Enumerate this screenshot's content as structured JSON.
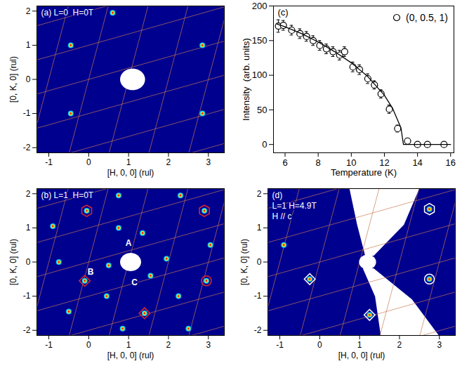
{
  "chart_data": [
    {
      "type": "map",
      "title": "(a) L=0  H=0T",
      "x_label": "[H, 0, 0] (rul)",
      "y_label": "[0, K, 0] (rul)",
      "xlim": [
        -1.3,
        3.4
      ],
      "ylim": [
        -2.15,
        2.15
      ],
      "xticks": [
        -1,
        0,
        1,
        2,
        3
      ],
      "yticks": [
        -2,
        -1,
        0,
        1,
        2
      ],
      "grid": true,
      "peaks": {
        "x": [
          0.6,
          -0.45,
          2.85,
          -0.45,
          2.85
        ],
        "y": [
          1.95,
          1.0,
          1.0,
          -1.0,
          -1.0
        ]
      },
      "beam_mask": {
        "x": 1.1,
        "y": 0,
        "radius": 0.3
      }
    },
    {
      "type": "scatter",
      "title": "(c)",
      "x_label": "Temperature (K)",
      "y_label": "Intensity  (arb. units)",
      "xlim": [
        5.3,
        16.2
      ],
      "ylim": [
        -12,
        200
      ],
      "xticks": [
        6,
        8,
        10,
        12,
        14,
        16
      ],
      "yticks": [
        0,
        50,
        100,
        150,
        200
      ],
      "legend": "top-right",
      "series": [
        {
          "name": "(0, 0.5, 1)",
          "type": "scatter",
          "marker": "circle",
          "color": "#000000",
          "x": [
            5.6,
            5.9,
            6.4,
            6.9,
            7.3,
            7.7,
            8.1,
            8.5,
            8.9,
            9.3,
            9.6,
            10.1,
            10.5,
            11.0,
            11.4,
            11.8,
            12.3,
            12.8,
            13.4,
            14.0,
            14.6,
            15.6
          ],
          "values": [
            171,
            172,
            165,
            160,
            156,
            150,
            143,
            138,
            134,
            129,
            134,
            112,
            108,
            95,
            86,
            73,
            51,
            23,
            5,
            0,
            0,
            0
          ],
          "errors": [
            9,
            7,
            7,
            7,
            7,
            7,
            7,
            7,
            7,
            7,
            7,
            7,
            7,
            7,
            6,
            6,
            6,
            5,
            4,
            3,
            3,
            3
          ]
        },
        {
          "type": "line",
          "color": "#000000",
          "x": [
            5.5,
            6,
            7,
            8,
            9,
            10,
            11,
            12,
            12.5,
            13,
            13.15,
            16
          ],
          "values": [
            174,
            170,
            160,
            148,
            134,
            118,
            98,
            71,
            52,
            24,
            0,
            0
          ]
        }
      ]
    },
    {
      "type": "map",
      "title": "(b) L=1  H=0T",
      "x_label": "[H, 0, 0] (rul)",
      "y_label": "[0, K, 0] (rul)",
      "xlim": [
        -1.3,
        3.4
      ],
      "ylim": [
        -2.15,
        2.15
      ],
      "xticks": [
        -1,
        0,
        1,
        2,
        3
      ],
      "yticks": [
        -2,
        -1,
        0,
        1,
        2
      ],
      "grid": true,
      "peaks": {
        "x": [
          -0.05,
          2.9,
          -0.1,
          1.4,
          2.95,
          1.35,
          0.5,
          1.55,
          -0.9,
          0.75,
          2.3,
          3.05,
          -0.75,
          0.75,
          2.25,
          -0.5,
          0.85,
          2.5,
          0.45,
          1.95
        ],
        "y": [
          1.5,
          1.5,
          -0.55,
          -1.5,
          -0.55,
          0.85,
          -0.1,
          -0.4,
          1.05,
          1.95,
          1.95,
          0.5,
          0.0,
          1.0,
          -1.0,
          -1.45,
          -1.95,
          -1.95,
          -1.0,
          0.1
        ]
      },
      "beam_mask": {
        "x": 1.05,
        "y": 0,
        "radius": 0.25
      },
      "point_labels": {
        "labels": [
          "A",
          "B",
          "C"
        ],
        "x": [
          1.0,
          0.05,
          1.15
        ],
        "y": [
          0.55,
          -0.3,
          -0.6
        ]
      },
      "series": [
        {
          "marker": "hexagon",
          "color": "#e02828",
          "x": [
            -0.05,
            2.9
          ],
          "y": [
            1.5,
            1.5
          ]
        },
        {
          "marker": "diamond",
          "color": "#e02828",
          "x": [
            -0.1,
            1.4
          ],
          "y": [
            -0.55,
            -1.5
          ]
        },
        {
          "marker": "circle",
          "color": "#e02828",
          "x": [
            2.95
          ],
          "y": [
            -0.55
          ]
        }
      ]
    },
    {
      "type": "map",
      "title": "(d)",
      "annotations": [
        "L=1 H=4.9T",
        "H // c"
      ],
      "x_label": "[H, 0, 0] (rul)",
      "y_label": "[0, K, 0] (rul)",
      "xlim": [
        -1.3,
        3.4
      ],
      "ylim": [
        -2.15,
        2.15
      ],
      "xticks": [
        -1,
        0,
        1,
        2,
        3
      ],
      "yticks": [
        -2,
        -1,
        0,
        1,
        2
      ],
      "grid": true,
      "peaks": {
        "x": [
          -0.25,
          1.25,
          2.75,
          2.75,
          -0.9
        ],
        "y": [
          -0.5,
          -1.55,
          1.55,
          -0.5,
          0.5
        ]
      },
      "beam_mask": {
        "x": 1.2,
        "y": 0,
        "radius": 0.2
      },
      "uncovered": [
        {
          "x": [
            1.15,
            0.95,
            0.75,
            2.5,
            2.1,
            1.35
          ],
          "y": [
            0.2,
            1.1,
            2.2,
            2.2,
            1.1,
            0.2
          ]
        },
        {
          "x": [
            1.1,
            1.4,
            1.55,
            3.0,
            2.3,
            1.35
          ],
          "y": [
            -0.2,
            -1.0,
            -2.2,
            -2.2,
            -1.1,
            -0.2
          ]
        }
      ],
      "series": [
        {
          "marker": "hexagon",
          "color": "#ffffff",
          "x": [
            2.75
          ],
          "y": [
            1.55
          ]
        },
        {
          "marker": "diamond",
          "color": "#ffffff",
          "x": [
            -0.25,
            1.25
          ],
          "y": [
            -0.5,
            -1.55
          ]
        },
        {
          "marker": "circle",
          "color": "#ffffff",
          "x": [
            2.75
          ],
          "y": [
            -0.5
          ]
        }
      ]
    }
  ]
}
